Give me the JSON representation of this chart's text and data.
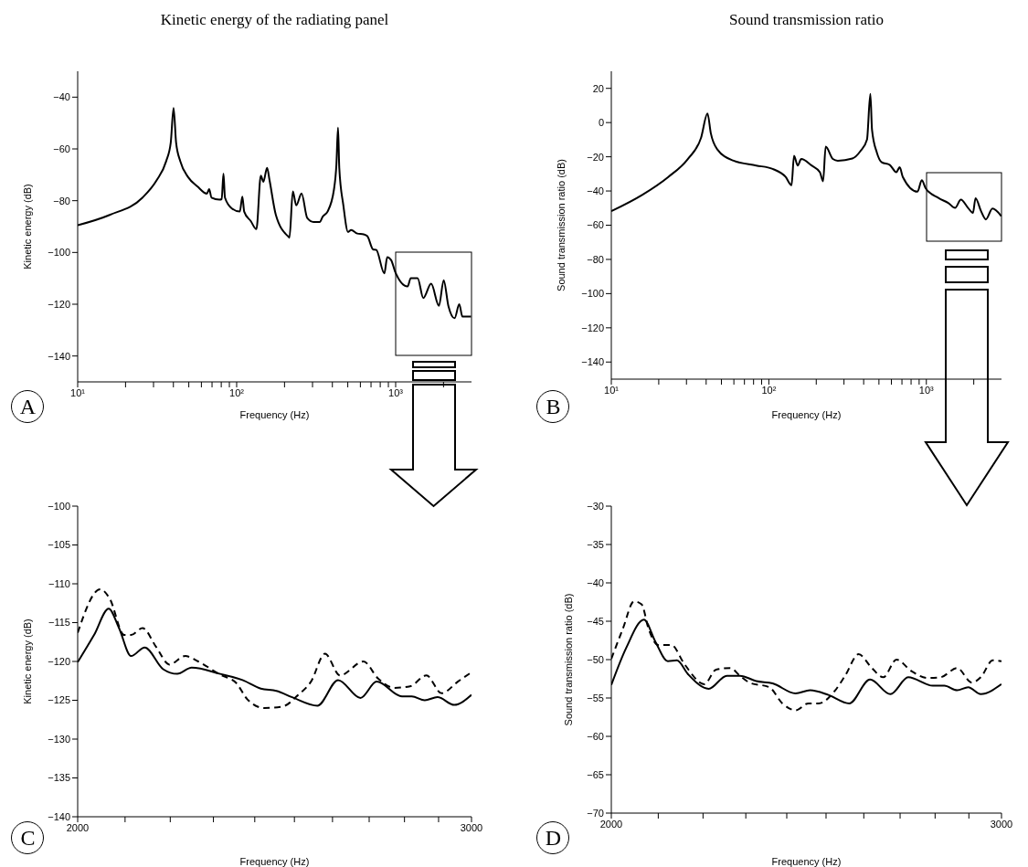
{
  "chart_data": [
    {
      "type": "line",
      "title": "Kinetic energy of the radiating panel",
      "xlabel": "Frequency (Hz)",
      "ylabel": "Kinetic energy (dB)",
      "annotations": [
        "A"
      ],
      "log": "x",
      "grid": false,
      "legend": false,
      "marker": "none",
      "line_style": "solid",
      "xlim": [
        10,
        3000
      ],
      "xticks": [
        {
          "value": 10,
          "label": "10¹"
        },
        {
          "value": 20,
          "label": null
        },
        {
          "value": 30,
          "label": null
        },
        {
          "value": 40,
          "label": null
        },
        {
          "value": 50,
          "label": null
        },
        {
          "value": 60,
          "label": null
        },
        {
          "value": 70,
          "label": null
        },
        {
          "value": 80,
          "label": null
        },
        {
          "value": 90,
          "label": null
        },
        {
          "value": 100,
          "label": "10²"
        },
        {
          "value": 200,
          "label": null
        },
        {
          "value": 300,
          "label": null
        },
        {
          "value": 400,
          "label": null
        },
        {
          "value": 500,
          "label": null
        },
        {
          "value": 600,
          "label": null
        },
        {
          "value": 700,
          "label": null
        },
        {
          "value": 800,
          "label": null
        },
        {
          "value": 900,
          "label": null
        },
        {
          "value": 1000,
          "label": "10³"
        },
        {
          "value": 2000,
          "label": null
        }
      ],
      "ylim": [
        -150,
        -30
      ],
      "yticks": [
        {
          "value": -140,
          "label": "−140"
        },
        {
          "value": -120,
          "label": "−120"
        },
        {
          "value": -100,
          "label": "−100"
        },
        {
          "value": -80,
          "label": "−80"
        },
        {
          "value": -60,
          "label": "−60"
        },
        {
          "value": -40,
          "label": "−40"
        }
      ],
      "series": [
        {
          "color": "#000000",
          "x": [
            10,
            15.9,
            25.6,
            31.4,
            36,
            38.5,
            40.1,
            41.6,
            44.2,
            49.5,
            56.6,
            65,
            67.1,
            69.5,
            77.9,
            80.5,
            82.6,
            84.4,
            93.3,
            104.7,
            108.6,
            111.5,
            122.7,
            133.1,
            141.9,
            147.2,
            155.4,
            161,
            176.4,
            211.5,
            214.8,
            225.6,
            237,
            256,
            278,
            304,
            333,
            348,
            373,
            409,
            424,
            434,
            442,
            469,
            502,
            525,
            574,
            629,
            664,
            721,
            755,
            849,
            885,
            938,
            991,
            1189,
            1245,
            1375,
            1492,
            1672,
            1872,
            2005,
            2145,
            2349,
            2513,
            2630,
            2980
          ],
          "values": [
            -89.5,
            -85.5,
            -78.8,
            -72.1,
            -64.8,
            -57.6,
            -44.2,
            -57.6,
            -64.8,
            -70.9,
            -74.5,
            -77.3,
            -75.5,
            -78.8,
            -79.6,
            -79.4,
            -69.5,
            -78.8,
            -83,
            -84.2,
            -78.4,
            -84.2,
            -87.9,
            -91,
            -70.3,
            -72.7,
            -67.3,
            -72.1,
            -85.5,
            -93.9,
            -94.3,
            -76.4,
            -81.8,
            -77.2,
            -86.7,
            -88.2,
            -88.2,
            -86.1,
            -84.2,
            -75.8,
            -66.1,
            -51.8,
            -67.3,
            -81.8,
            -92.1,
            -91.3,
            -92.7,
            -93,
            -93.7,
            -98.8,
            -99,
            -108.1,
            -101.8,
            -103,
            -107.3,
            -113.1,
            -109.9,
            -109.9,
            -117.6,
            -112.1,
            -120.6,
            -110.7,
            -120.6,
            -125.4,
            -120,
            -124.8,
            -124.8
          ]
        }
      ]
    },
    {
      "type": "line",
      "title": "Sound transmission ratio",
      "xlabel": "Frequency (Hz)",
      "ylabel": "Sound transmission ratio (dB)",
      "annotations": [
        "B"
      ],
      "log": "x",
      "grid": false,
      "legend": false,
      "marker": "none",
      "line_style": "solid",
      "xlim": [
        10,
        3000
      ],
      "xticks": [
        {
          "value": 10,
          "label": "10¹"
        },
        {
          "value": 20,
          "label": null
        },
        {
          "value": 30,
          "label": null
        },
        {
          "value": 40,
          "label": null
        },
        {
          "value": 50,
          "label": null
        },
        {
          "value": 60,
          "label": null
        },
        {
          "value": 70,
          "label": null
        },
        {
          "value": 80,
          "label": null
        },
        {
          "value": 90,
          "label": null
        },
        {
          "value": 100,
          "label": "10²"
        },
        {
          "value": 200,
          "label": null
        },
        {
          "value": 300,
          "label": null
        },
        {
          "value": 400,
          "label": null
        },
        {
          "value": 500,
          "label": null
        },
        {
          "value": 600,
          "label": null
        },
        {
          "value": 700,
          "label": null
        },
        {
          "value": 800,
          "label": null
        },
        {
          "value": 900,
          "label": null
        },
        {
          "value": 1000,
          "label": "10³"
        },
        {
          "value": 2000,
          "label": null
        }
      ],
      "ylim": [
        -150,
        30
      ],
      "yticks": [
        {
          "value": -140,
          "label": "−140"
        },
        {
          "value": -120,
          "label": "−120"
        },
        {
          "value": -100,
          "label": "−100"
        },
        {
          "value": -80,
          "label": "−80"
        },
        {
          "value": -60,
          "label": "−60"
        },
        {
          "value": -40,
          "label": "−40"
        },
        {
          "value": -20,
          "label": "−20"
        },
        0,
        20
      ],
      "series": [
        {
          "color": "#000000",
          "x": [
            10,
            15.7,
            23,
            30.6,
            37.1,
            40.8,
            42.8,
            47,
            59.7,
            83.2,
            105.6,
            127.9,
            139.3,
            144.6,
            152.4,
            160.6,
            187,
            211,
            221,
            229.6,
            254.9,
            274,
            339,
            382,
            420,
            441,
            452,
            485,
            521,
            587,
            645,
            677,
            709,
            879,
            935,
            991,
            1199,
            1383,
            1521,
            1657,
            1841,
            1977,
            2053,
            2225,
            2389,
            2628,
            2990
          ],
          "values": [
            -51.8,
            -42.3,
            -31.8,
            -21.3,
            -9,
            5.3,
            -6.1,
            -15.6,
            -22.3,
            -25.1,
            -27.1,
            -31.8,
            -36.6,
            -19.4,
            -25.1,
            -21.3,
            -25.1,
            -29,
            -34.3,
            -14.1,
            -21.3,
            -22.3,
            -21,
            -16.6,
            -9.9,
            16.8,
            -4.2,
            -17.5,
            -23.2,
            -24.8,
            -29,
            -26.1,
            -31.8,
            -40.4,
            -33.7,
            -38.5,
            -44.2,
            -47.1,
            -49.9,
            -45.1,
            -49.9,
            -52.8,
            -44.2,
            -51.8,
            -56.6,
            -50.3,
            -54.7
          ]
        }
      ]
    },
    {
      "type": "line",
      "xlabel": "Frequency (Hz)",
      "ylabel": "Kinetic energy (dB)",
      "annotations": [
        "C"
      ],
      "log": "x",
      "grid": false,
      "legend": false,
      "marker": "none",
      "xlim": [
        2000,
        3000
      ],
      "xticks": [
        {
          "value": 2000,
          "label": "2000"
        },
        {
          "value": 2100,
          "label": null
        },
        {
          "value": 2200,
          "label": null
        },
        {
          "value": 2300,
          "label": null
        },
        {
          "value": 2400,
          "label": null
        },
        {
          "value": 2500,
          "label": null
        },
        {
          "value": 2600,
          "label": null
        },
        {
          "value": 2700,
          "label": null
        },
        {
          "value": 2800,
          "label": null
        },
        {
          "value": 2900,
          "label": null
        },
        {
          "value": 3000,
          "label": "3000"
        }
      ],
      "ylim": [
        -140,
        -100
      ],
      "yticks": [
        {
          "value": -140,
          "label": "−140"
        },
        {
          "value": -135,
          "label": "−135"
        },
        {
          "value": -130,
          "label": "−130"
        },
        {
          "value": -125,
          "label": "−125"
        },
        {
          "value": -120,
          "label": "−120"
        },
        {
          "value": -115,
          "label": "−115"
        },
        {
          "value": -110,
          "label": "−110"
        },
        {
          "value": -105,
          "label": "−105"
        },
        {
          "value": -100,
          "label": "−100"
        }
      ],
      "series": [
        {
          "color": "#000000",
          "line_style": "solid",
          "x": [
            2000,
            2034,
            2065,
            2087,
            2113,
            2143,
            2184,
            2216,
            2249,
            2316,
            2370,
            2415,
            2454,
            2494,
            2560,
            2615,
            2676,
            2721,
            2793,
            2821,
            2859,
            2897,
            2947,
            3000
          ],
          "values": [
            -120.1,
            -116.6,
            -113.2,
            -115.7,
            -119.3,
            -118.2,
            -121,
            -121.6,
            -120.8,
            -121.6,
            -122.4,
            -123.5,
            -123.8,
            -124.6,
            -125.7,
            -122.4,
            -124.7,
            -122.6,
            -124.5,
            -124.5,
            -125,
            -124.6,
            -125.6,
            -124.3
          ]
        },
        {
          "color": "#000000",
          "line_style": "dashed",
          "x": [
            2000,
            2047,
            2067,
            2098,
            2113,
            2138,
            2169,
            2198,
            2234,
            2264,
            2316,
            2355,
            2382,
            2424,
            2470,
            2510,
            2543,
            2580,
            2620,
            2684,
            2725,
            2771,
            2816,
            2864,
            2909,
            2958,
            3000
          ],
          "values": [
            -116.3,
            -110.7,
            -111.9,
            -116.6,
            -116.6,
            -115.7,
            -118.2,
            -120.4,
            -119.3,
            -120,
            -121.7,
            -122.8,
            -124.9,
            -126,
            -125.8,
            -124.3,
            -122.6,
            -119,
            -121.8,
            -120,
            -122.2,
            -123.4,
            -123.2,
            -121.8,
            -124.1,
            -122.6,
            -121.4
          ]
        }
      ]
    },
    {
      "type": "line",
      "xlabel": "Frequency (Hz)",
      "ylabel": "Sound transmission ratio (dB)",
      "annotations": [
        "D"
      ],
      "log": "x",
      "grid": false,
      "legend": false,
      "marker": "none",
      "xlim": [
        2000,
        3000
      ],
      "xticks": [
        {
          "value": 2000,
          "label": "2000"
        },
        {
          "value": 2100,
          "label": null
        },
        {
          "value": 2200,
          "label": null
        },
        {
          "value": 2300,
          "label": null
        },
        {
          "value": 2400,
          "label": null
        },
        {
          "value": 2500,
          "label": null
        },
        {
          "value": 2600,
          "label": null
        },
        {
          "value": 2700,
          "label": null
        },
        {
          "value": 2800,
          "label": null
        },
        {
          "value": 2900,
          "label": null
        },
        {
          "value": 3000,
          "label": "3000"
        }
      ],
      "ylim": [
        -70,
        -30
      ],
      "yticks": [
        {
          "value": -70,
          "label": "−70"
        },
        {
          "value": -65,
          "label": "−65"
        },
        {
          "value": -60,
          "label": "−60"
        },
        {
          "value": -55,
          "label": "−55"
        },
        {
          "value": -50,
          "label": "−50"
        },
        {
          "value": -45,
          "label": "−45"
        },
        {
          "value": -40,
          "label": "−40"
        },
        {
          "value": -35,
          "label": "−35"
        },
        {
          "value": -30,
          "label": "−30"
        }
      ],
      "series": [
        {
          "color": "#000000",
          "line_style": "solid",
          "x": [
            2000,
            2031,
            2069,
            2094,
            2121,
            2141,
            2166,
            2213,
            2255,
            2286,
            2325,
            2365,
            2422,
            2459,
            2506,
            2561,
            2617,
            2673,
            2723,
            2793,
            2827,
            2865,
            2898,
            2936,
            3000
          ],
          "values": [
            -53.3,
            -48.5,
            -44.8,
            -47.7,
            -50.2,
            -50.1,
            -51.9,
            -53.8,
            -52.1,
            -52.1,
            -52.8,
            -53.1,
            -54.4,
            -54,
            -54.6,
            -55.7,
            -52.6,
            -54.5,
            -52.3,
            -53.4,
            -53.4,
            -54,
            -53.6,
            -54.5,
            -53.2
          ]
        },
        {
          "color": "#000000",
          "line_style": "dashed",
          "x": [
            2000,
            2024,
            2048,
            2064,
            2079,
            2100,
            2129,
            2158,
            2203,
            2230,
            2263,
            2286,
            2309,
            2357,
            2389,
            2422,
            2455,
            2481,
            2524,
            2550,
            2586,
            2622,
            2653,
            2690,
            2732,
            2779,
            2816,
            2865,
            2909,
            2936,
            2973,
            3000
          ],
          "values": [
            -49.9,
            -46,
            -42.4,
            -42.8,
            -46,
            -48.1,
            -48.1,
            -50.6,
            -53.2,
            -51.3,
            -51.1,
            -52.1,
            -53,
            -53.6,
            -55.7,
            -56.6,
            -55.7,
            -55.7,
            -54,
            -52.1,
            -49.3,
            -51.1,
            -52.3,
            -50,
            -51.5,
            -52.4,
            -52.3,
            -51.1,
            -53,
            -52.3,
            -50.1,
            -50.2
          ]
        }
      ]
    }
  ]
}
